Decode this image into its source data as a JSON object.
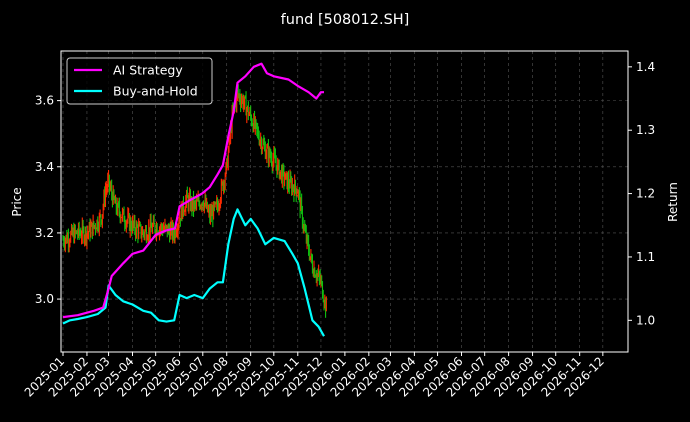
{
  "chart_data": {
    "type": "line",
    "title": "fund [508012.SH]",
    "ylabel_left": "Price",
    "ylabel_right": "Return",
    "x_range": [
      "2025-01-01",
      "2026-12-31"
    ],
    "ylim_left": [
      2.84,
      3.75
    ],
    "ylim_right": [
      0.95,
      1.425
    ],
    "grid": true,
    "legend_position": "top-left",
    "left_ticks": [
      "3.0",
      "3.2",
      "3.4",
      "3.6"
    ],
    "right_ticks": [
      "1.0",
      "1.1",
      "1.2",
      "1.3",
      "1.4"
    ],
    "x_tick_labels": [
      "2025-01",
      "2025-02",
      "2025-03",
      "2025-04",
      "2025-05",
      "2025-06",
      "2025-07",
      "2025-08",
      "2025-09",
      "2025-10",
      "2025-11",
      "2025-12",
      "2026-01",
      "2026-02",
      "2026-03",
      "2026-04",
      "2026-05",
      "2026-06",
      "2026-07",
      "2026-08",
      "2026-09",
      "2026-10",
      "2026-11",
      "2026-12"
    ],
    "colors": {
      "ai_strategy": "#ff00ff",
      "buy_and_hold": "#00ffff",
      "candle_up": "#ff2a00",
      "candle_down": "#10c010",
      "background": "#000000",
      "grid": "#555555"
    },
    "series": [
      {
        "name": "AI Strategy",
        "axis": "right",
        "x": [
          "2025-01-01",
          "2025-01-20",
          "2025-02-10",
          "2025-02-22",
          "2025-03-01",
          "2025-03-05",
          "2025-03-20",
          "2025-04-01",
          "2025-04-15",
          "2025-05-01",
          "2025-05-15",
          "2025-05-26",
          "2025-06-01",
          "2025-06-15",
          "2025-06-30",
          "2025-07-10",
          "2025-07-20",
          "2025-07-27",
          "2025-08-03",
          "2025-08-10",
          "2025-08-15",
          "2025-08-25",
          "2025-09-05",
          "2025-09-15",
          "2025-09-22",
          "2025-10-01",
          "2025-10-20",
          "2025-11-01",
          "2025-11-15",
          "2025-11-25",
          "2025-12-01",
          "2025-12-05"
        ],
        "values": [
          1.005,
          1.008,
          1.015,
          1.02,
          1.05,
          1.07,
          1.09,
          1.105,
          1.11,
          1.135,
          1.142,
          1.145,
          1.18,
          1.19,
          1.2,
          1.21,
          1.23,
          1.245,
          1.29,
          1.33,
          1.375,
          1.385,
          1.4,
          1.405,
          1.39,
          1.385,
          1.38,
          1.37,
          1.36,
          1.35,
          1.36,
          1.36
        ]
      },
      {
        "name": "Buy-and-Hold",
        "axis": "right",
        "x": [
          "2025-01-01",
          "2025-01-10",
          "2025-01-20",
          "2025-02-01",
          "2025-02-15",
          "2025-02-25",
          "2025-03-01",
          "2025-03-10",
          "2025-03-20",
          "2025-04-01",
          "2025-04-15",
          "2025-04-25",
          "2025-05-05",
          "2025-05-15",
          "2025-05-25",
          "2025-06-01",
          "2025-06-10",
          "2025-06-20",
          "2025-07-01",
          "2025-07-10",
          "2025-07-20",
          "2025-07-27",
          "2025-08-03",
          "2025-08-10",
          "2025-08-15",
          "2025-08-25",
          "2025-09-01",
          "2025-09-10",
          "2025-09-20",
          "2025-10-01",
          "2025-10-15",
          "2025-10-25",
          "2025-11-01",
          "2025-11-10",
          "2025-11-20",
          "2025-11-28",
          "2025-12-05"
        ],
        "values": [
          0.995,
          1.0,
          1.002,
          1.005,
          1.01,
          1.02,
          1.055,
          1.04,
          1.03,
          1.025,
          1.015,
          1.012,
          1.0,
          0.998,
          1.0,
          1.04,
          1.035,
          1.04,
          1.035,
          1.05,
          1.06,
          1.06,
          1.12,
          1.16,
          1.175,
          1.15,
          1.16,
          1.145,
          1.12,
          1.13,
          1.125,
          1.105,
          1.09,
          1.05,
          1.0,
          0.99,
          0.975
        ]
      },
      {
        "name": "",
        "type": "candlestick_close",
        "axis": "left",
        "x": [
          "2025-01-01",
          "2025-01-10",
          "2025-01-20",
          "2025-02-01",
          "2025-02-10",
          "2025-02-20",
          "2025-02-25",
          "2025-03-01",
          "2025-03-10",
          "2025-03-20",
          "2025-04-01",
          "2025-04-15",
          "2025-05-01",
          "2025-05-15",
          "2025-05-25",
          "2025-06-01",
          "2025-06-10",
          "2025-06-20",
          "2025-07-01",
          "2025-07-10",
          "2025-07-20",
          "2025-08-01",
          "2025-08-08",
          "2025-08-15",
          "2025-08-22",
          "2025-09-01",
          "2025-09-10",
          "2025-09-20",
          "2025-10-01",
          "2025-10-10",
          "2025-10-20",
          "2025-11-01",
          "2025-11-10",
          "2025-11-20",
          "2025-12-01",
          "2025-12-08"
        ],
        "values": [
          3.18,
          3.19,
          3.2,
          3.2,
          3.22,
          3.25,
          3.33,
          3.35,
          3.28,
          3.25,
          3.22,
          3.2,
          3.22,
          3.21,
          3.2,
          3.25,
          3.3,
          3.28,
          3.3,
          3.25,
          3.28,
          3.4,
          3.55,
          3.62,
          3.6,
          3.55,
          3.5,
          3.45,
          3.42,
          3.38,
          3.35,
          3.33,
          3.2,
          3.1,
          3.05,
          2.97
        ]
      }
    ]
  }
}
